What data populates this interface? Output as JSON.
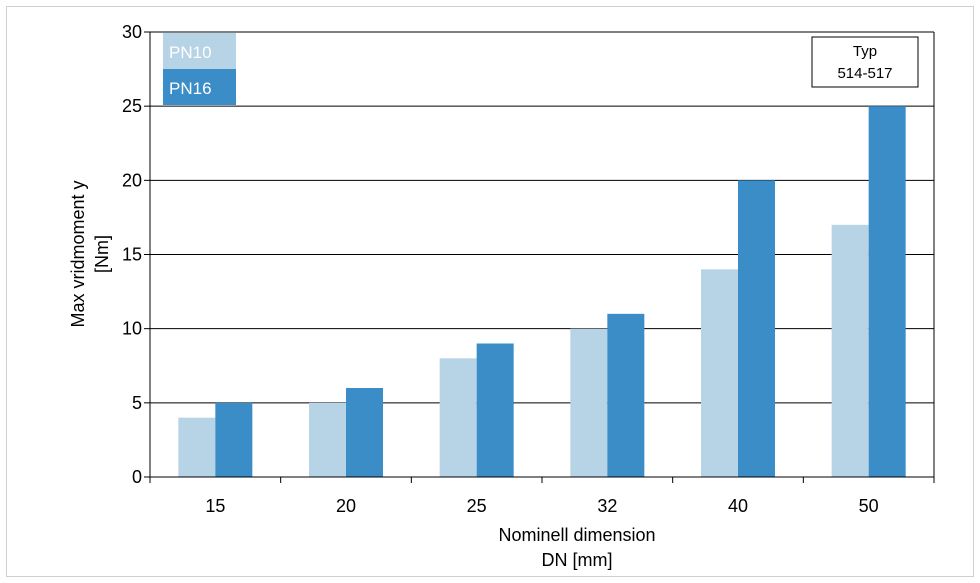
{
  "chart_data": {
    "type": "bar",
    "title": "",
    "categories": [
      "15",
      "20",
      "25",
      "32",
      "40",
      "50"
    ],
    "series": [
      {
        "name": "PN10",
        "color": "#b7d3e6",
        "values": [
          4,
          5,
          8,
          10,
          14,
          17
        ]
      },
      {
        "name": "PN16",
        "color": "#3b8dc8",
        "values": [
          5,
          6,
          9,
          11,
          20,
          25
        ]
      }
    ],
    "ylabel_line1": "Max vridmoment y",
    "ylabel_line2": "[Nm]",
    "xlabel_line1": "Nominell dimension",
    "xlabel_line2": "DN [mm]",
    "ylim": [
      0,
      30
    ],
    "yticks": [
      0,
      5,
      10,
      15,
      20,
      25,
      30
    ],
    "grid": true,
    "legend_position": "top-left",
    "annotation_line1": "Typ",
    "annotation_line2": "514-517"
  }
}
